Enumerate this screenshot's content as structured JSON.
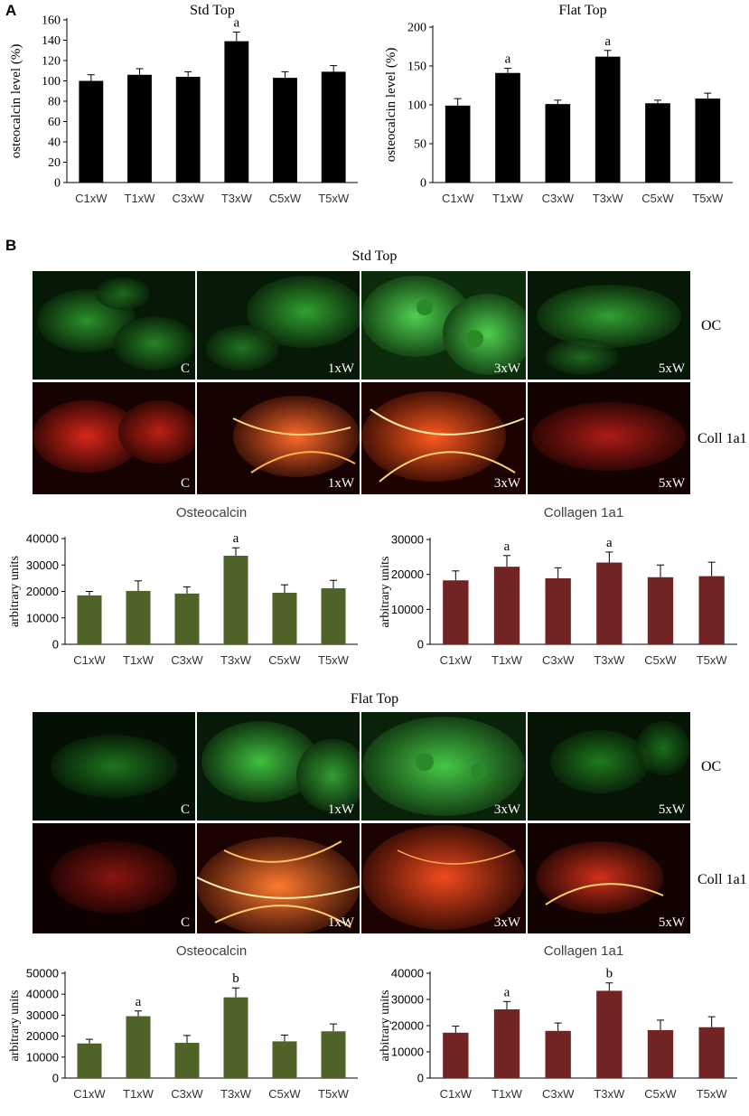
{
  "panels": {
    "a": "A",
    "b": "B"
  },
  "colors": {
    "black_bar": "#000000",
    "green_bar": "#4f6228",
    "red_bar": "#722323",
    "oc_stain": "#2fbf2f",
    "coll_stain": "#d8261a"
  },
  "micro": {
    "std_title": "Std Top",
    "flat_title": "Flat Top",
    "row_labels": {
      "oc": "OC",
      "coll": "Coll 1a1"
    },
    "col_labels": [
      "C",
      "1xW",
      "3xW",
      "5xW"
    ]
  },
  "chart_data": [
    {
      "id": "a_std",
      "type": "bar",
      "title": "Std Top",
      "title_font": "serif",
      "ylabel": "osteocalcin level (%)",
      "categories": [
        "C1xW",
        "T1xW",
        "C3xW",
        "T3xW",
        "C5xW",
        "T5xW"
      ],
      "values": [
        100,
        106,
        104,
        139,
        103,
        109
      ],
      "errors": [
        6,
        6,
        5,
        9,
        6,
        6
      ],
      "annotations": [
        "",
        "",
        "",
        "a",
        "",
        ""
      ],
      "ylim": [
        0,
        160
      ],
      "yticks": [
        0,
        20,
        40,
        60,
        80,
        100,
        120,
        140,
        160
      ],
      "color": "#000000",
      "grid": false
    },
    {
      "id": "a_flat",
      "type": "bar",
      "title": "Flat Top",
      "title_font": "serif",
      "ylabel": "osteocalcin level (%)",
      "categories": [
        "C1xW",
        "T1xW",
        "C3xW",
        "T3xW",
        "C5xW",
        "T5xW"
      ],
      "values": [
        99,
        141,
        101,
        162,
        102,
        108
      ],
      "errors": [
        9,
        6,
        5,
        8,
        4,
        7
      ],
      "annotations": [
        "",
        "a",
        "",
        "a",
        "",
        ""
      ],
      "ylim": [
        0,
        200
      ],
      "yticks": [
        0,
        50,
        100,
        150,
        200
      ],
      "color": "#000000",
      "grid": false
    },
    {
      "id": "b_std_oc",
      "type": "bar",
      "title": "Osteocalcin",
      "title_font": "sans",
      "ylabel": "arbitrary units",
      "categories": [
        "C1xW",
        "T1xW",
        "C3xW",
        "T3xW",
        "C5xW",
        "T5xW"
      ],
      "values": [
        18500,
        20200,
        19200,
        33500,
        19500,
        21200
      ],
      "errors": [
        1500,
        3800,
        2500,
        3000,
        3000,
        3000
      ],
      "annotations": [
        "",
        "",
        "",
        "a",
        "",
        ""
      ],
      "ylim": [
        0,
        40000
      ],
      "yticks": [
        0,
        10000,
        20000,
        30000,
        40000
      ],
      "color": "#4f6228",
      "grid": false
    },
    {
      "id": "b_std_coll",
      "type": "bar",
      "title": "Collagen 1a1",
      "title_font": "sans",
      "ylabel": "arbitrary units",
      "categories": [
        "C1xW",
        "T1xW",
        "C3xW",
        "T3xW",
        "C5xW",
        "T5xW"
      ],
      "values": [
        18300,
        22200,
        18900,
        23400,
        19200,
        19500
      ],
      "errors": [
        2700,
        3200,
        3000,
        3000,
        3500,
        4000
      ],
      "annotations": [
        "",
        "a",
        "",
        "a",
        "",
        ""
      ],
      "ylim": [
        0,
        30000
      ],
      "yticks": [
        0,
        10000,
        20000,
        30000
      ],
      "color": "#722323",
      "grid": false
    },
    {
      "id": "b_flat_oc",
      "type": "bar",
      "title": "Osteocalcin",
      "title_font": "sans",
      "ylabel": "arbitrary units",
      "categories": [
        "C1xW",
        "T1xW",
        "C3xW",
        "T3xW",
        "C5xW",
        "T5xW"
      ],
      "values": [
        16500,
        29500,
        16800,
        38500,
        17500,
        22300
      ],
      "errors": [
        2000,
        2500,
        3500,
        4500,
        3000,
        3500
      ],
      "annotations": [
        "",
        "a",
        "",
        "b",
        "",
        ""
      ],
      "ylim": [
        0,
        50000
      ],
      "yticks": [
        0,
        10000,
        20000,
        30000,
        40000,
        50000
      ],
      "color": "#4f6228",
      "grid": false
    },
    {
      "id": "b_flat_coll",
      "type": "bar",
      "title": "Collagen 1a1",
      "title_font": "sans",
      "ylabel": "arbitrary units",
      "categories": [
        "C1xW",
        "T1xW",
        "C3xW",
        "T3xW",
        "C5xW",
        "T5xW"
      ],
      "values": [
        17300,
        26200,
        18000,
        33300,
        18300,
        19400
      ],
      "errors": [
        2500,
        3000,
        3000,
        3000,
        3800,
        4000
      ],
      "annotations": [
        "",
        "a",
        "",
        "b",
        "",
        ""
      ],
      "ylim": [
        0,
        40000
      ],
      "yticks": [
        0,
        10000,
        20000,
        30000,
        40000
      ],
      "color": "#722323",
      "grid": false
    }
  ]
}
